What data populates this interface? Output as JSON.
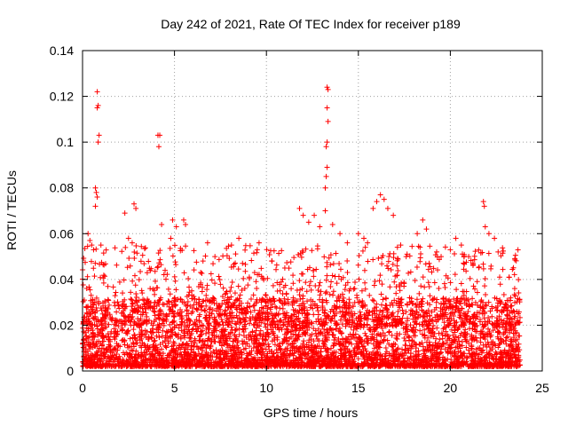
{
  "chart_data": {
    "type": "scatter",
    "title": "Day 242 of 2021, Rate Of TEC Index for receiver p189",
    "xlabel": "GPS time / hours",
    "ylabel": "ROTI / TECUs",
    "xlim": [
      0,
      25
    ],
    "ylim": [
      0,
      0.14
    ],
    "x_ticks": [
      0,
      5,
      10,
      15,
      20,
      25
    ],
    "x_tick_labels": [
      "0",
      "5",
      "10",
      "15",
      "20",
      "25"
    ],
    "y_ticks": [
      0,
      0.02,
      0.04,
      0.06,
      0.08,
      0.1,
      0.12,
      0.14
    ],
    "y_tick_labels": [
      "0",
      "0.02",
      "0.04",
      "0.06",
      "0.08",
      "0.1",
      "0.12",
      "0.14"
    ],
    "grid": true,
    "marker": "plus",
    "color": "#ff0000",
    "x_data_range": [
      0,
      23.8
    ],
    "series": [
      {
        "points": [
          [
            0.8,
            0.122
          ],
          [
            0.85,
            0.116
          ],
          [
            0.8,
            0.115
          ],
          [
            0.9,
            0.103
          ],
          [
            0.85,
            0.1
          ],
          [
            0.7,
            0.08
          ],
          [
            0.75,
            0.078
          ],
          [
            0.8,
            0.076
          ],
          [
            0.7,
            0.072
          ],
          [
            0.3,
            0.06
          ],
          [
            0.4,
            0.057
          ],
          [
            0.5,
            0.055
          ],
          [
            0.6,
            0.053
          ],
          [
            1.0,
            0.055
          ],
          [
            2.3,
            0.069
          ],
          [
            2.8,
            0.073
          ],
          [
            2.9,
            0.071
          ],
          [
            2.5,
            0.058
          ],
          [
            2.7,
            0.056
          ],
          [
            4.1,
            0.103
          ],
          [
            4.2,
            0.103
          ],
          [
            4.15,
            0.098
          ],
          [
            4.3,
            0.064
          ],
          [
            4.9,
            0.066
          ],
          [
            5.1,
            0.063
          ],
          [
            5.5,
            0.066
          ],
          [
            5.6,
            0.064
          ],
          [
            4.8,
            0.058
          ],
          [
            6.8,
            0.056
          ],
          [
            7.2,
            0.05
          ],
          [
            8.1,
            0.055
          ],
          [
            8.5,
            0.058
          ],
          [
            8.7,
            0.047
          ],
          [
            9.6,
            0.056
          ],
          [
            9.5,
            0.053
          ],
          [
            10.3,
            0.048
          ],
          [
            11.0,
            0.045
          ],
          [
            11.8,
            0.071
          ],
          [
            12.0,
            0.068
          ],
          [
            12.3,
            0.065
          ],
          [
            12.6,
            0.068
          ],
          [
            12.9,
            0.063
          ],
          [
            13.3,
            0.124
          ],
          [
            13.35,
            0.123
          ],
          [
            13.3,
            0.115
          ],
          [
            13.35,
            0.109
          ],
          [
            13.3,
            0.1
          ],
          [
            13.25,
            0.098
          ],
          [
            13.3,
            0.089
          ],
          [
            13.25,
            0.085
          ],
          [
            13.2,
            0.08
          ],
          [
            13.2,
            0.07
          ],
          [
            13.6,
            0.064
          ],
          [
            14.0,
            0.06
          ],
          [
            14.4,
            0.056
          ],
          [
            15.0,
            0.06
          ],
          [
            15.3,
            0.058
          ],
          [
            15.5,
            0.056
          ],
          [
            15.8,
            0.071
          ],
          [
            16.0,
            0.074
          ],
          [
            16.2,
            0.077
          ],
          [
            16.4,
            0.075
          ],
          [
            16.6,
            0.071
          ],
          [
            16.9,
            0.068
          ],
          [
            17.3,
            0.055
          ],
          [
            17.6,
            0.05
          ],
          [
            18.2,
            0.06
          ],
          [
            18.5,
            0.066
          ],
          [
            18.7,
            0.062
          ],
          [
            19.5,
            0.05
          ],
          [
            20.0,
            0.053
          ],
          [
            20.3,
            0.058
          ],
          [
            20.6,
            0.055
          ],
          [
            21.0,
            0.05
          ],
          [
            21.8,
            0.074
          ],
          [
            21.85,
            0.072
          ],
          [
            21.9,
            0.063
          ],
          [
            22.1,
            0.06
          ],
          [
            22.4,
            0.058
          ],
          [
            22.6,
            0.052
          ],
          [
            23.2,
            0.041
          ],
          [
            23.5,
            0.036
          ],
          [
            23.7,
            0.025
          ],
          [
            14.5,
            0.035
          ],
          [
            14.8,
            0.036
          ],
          [
            15.2,
            0.035
          ],
          [
            15.6,
            0.033
          ],
          [
            15.0,
            0.03
          ],
          [
            14.2,
            0.03
          ],
          [
            15.9,
            0.025
          ]
        ],
        "note_bulk": "dense band"
      }
    ]
  }
}
